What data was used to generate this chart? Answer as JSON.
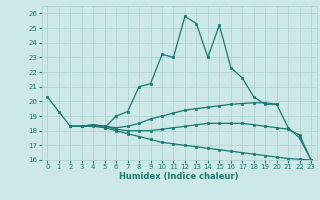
{
  "bg_color": "#cce8e8",
  "line_color": "#1a7a6e",
  "grid_color": "#aacfcf",
  "xlabel": "Humidex (Indice chaleur)",
  "ylim": [
    16,
    26.5
  ],
  "xlim": [
    -0.5,
    23.5
  ],
  "yticks": [
    16,
    17,
    18,
    19,
    20,
    21,
    22,
    23,
    24,
    25,
    26
  ],
  "xticks": [
    0,
    1,
    2,
    3,
    4,
    5,
    6,
    7,
    8,
    9,
    10,
    11,
    12,
    13,
    14,
    15,
    16,
    17,
    18,
    19,
    20,
    21,
    22,
    23
  ],
  "lines": [
    {
      "x": [
        0,
        1,
        2,
        3,
        4,
        5,
        6,
        7,
        8,
        9,
        10,
        11,
        12,
        13,
        14,
        15,
        16,
        17,
        18,
        19,
        20
      ],
      "y": [
        20.3,
        19.3,
        18.3,
        18.3,
        18.4,
        18.2,
        19.0,
        19.3,
        21.0,
        21.2,
        23.2,
        23.0,
        25.8,
        25.3,
        23.0,
        25.2,
        22.3,
        21.6,
        20.3,
        19.8,
        19.8
      ]
    },
    {
      "x": [
        2,
        3,
        4,
        5,
        6,
        7,
        8,
        9,
        10,
        11,
        12,
        13,
        14,
        15,
        16,
        17,
        18,
        19,
        20,
        21,
        22,
        23
      ],
      "y": [
        18.3,
        18.3,
        18.4,
        18.3,
        18.2,
        18.3,
        18.5,
        18.8,
        19.0,
        19.2,
        19.4,
        19.5,
        19.6,
        19.7,
        19.8,
        19.85,
        19.9,
        19.9,
        19.8,
        18.2,
        17.5,
        16.0
      ]
    },
    {
      "x": [
        2,
        3,
        4,
        5,
        6,
        7,
        8,
        9,
        10,
        11,
        12,
        13,
        14,
        15,
        16,
        17,
        18,
        19,
        20,
        21,
        22,
        23
      ],
      "y": [
        18.3,
        18.3,
        18.4,
        18.3,
        18.1,
        18.0,
        18.0,
        18.0,
        18.1,
        18.2,
        18.3,
        18.4,
        18.5,
        18.5,
        18.5,
        18.5,
        18.4,
        18.3,
        18.2,
        18.1,
        17.7,
        16.0
      ]
    },
    {
      "x": [
        2,
        3,
        4,
        5,
        6,
        7,
        8,
        9,
        10,
        11,
        12,
        13,
        14,
        15,
        16,
        17,
        18,
        19,
        20,
        21,
        22,
        23
      ],
      "y": [
        18.3,
        18.3,
        18.3,
        18.2,
        18.0,
        17.8,
        17.6,
        17.4,
        17.2,
        17.1,
        17.0,
        16.9,
        16.8,
        16.7,
        16.6,
        16.5,
        16.4,
        16.3,
        16.2,
        16.1,
        16.05,
        16.0
      ]
    }
  ]
}
